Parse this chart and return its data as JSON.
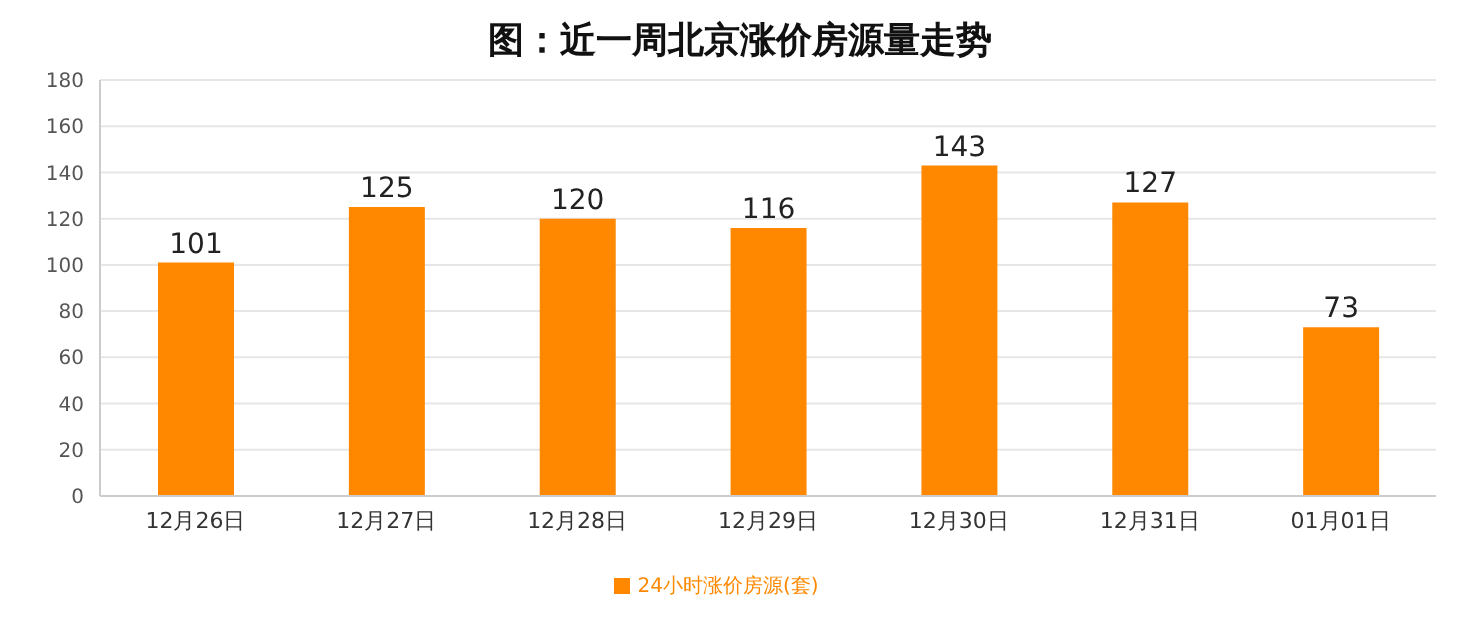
{
  "chart_data": {
    "type": "bar",
    "title": "图：近一周北京涨价房源量走势",
    "categories": [
      "12月26日",
      "12月27日",
      "12月28日",
      "12月29日",
      "12月30日",
      "12月31日",
      "01月01日"
    ],
    "series": [
      {
        "name": "24小时涨价房源(套)",
        "color": "#ff8800",
        "values": [
          101,
          125,
          120,
          116,
          143,
          127,
          73
        ]
      }
    ],
    "ylim": [
      0,
      180
    ],
    "yticks": [
      0,
      20,
      40,
      60,
      80,
      100,
      120,
      140,
      160,
      180
    ],
    "grid": "y",
    "legend": "bottom",
    "data_labels": true
  }
}
